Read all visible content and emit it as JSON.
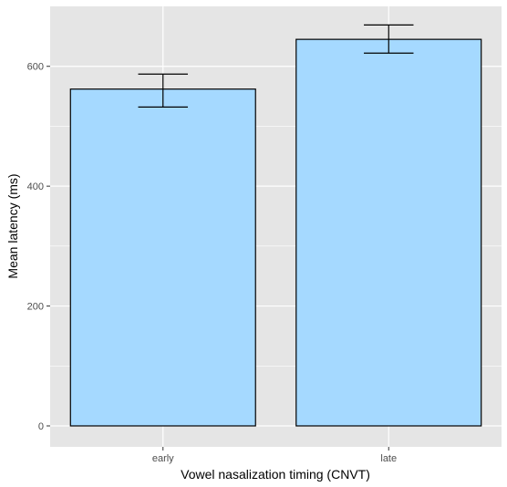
{
  "chart_data": {
    "type": "bar",
    "categories": [
      "early",
      "late"
    ],
    "values": [
      562,
      645
    ],
    "error_bars": [
      {
        "low": 532,
        "high": 587
      },
      {
        "low": 622,
        "high": 669
      }
    ],
    "xlabel": "Vowel nasalization timing (CNVT)",
    "ylabel": "Mean latency (ms)",
    "yticks": [
      0,
      200,
      400,
      600
    ],
    "ylim": [
      -35,
      700
    ],
    "grid": true,
    "colors": {
      "bar_fill": "#a5d9ff",
      "bar_stroke": "#000000",
      "panel_background": "#e5e5e5",
      "gridline": "#ffffff"
    }
  }
}
